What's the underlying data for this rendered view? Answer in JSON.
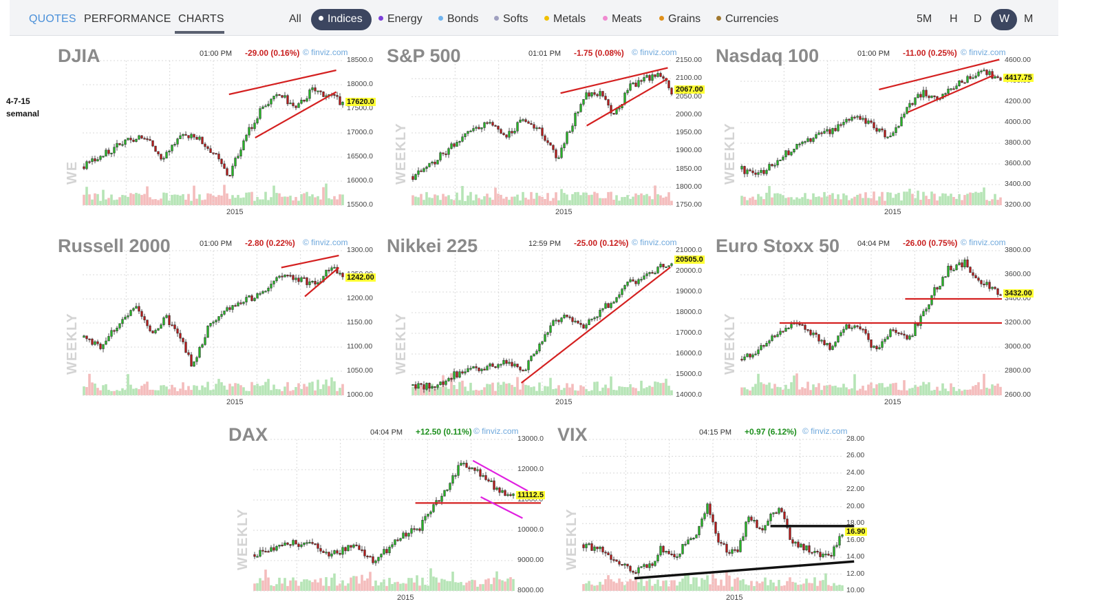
{
  "nav": {
    "tabs": [
      {
        "label": "QUOTES"
      },
      {
        "label": "PERFORMANCE"
      },
      {
        "label": "CHARTS"
      }
    ],
    "categories": [
      {
        "label": "All",
        "dot": ""
      },
      {
        "label": "Indices",
        "dot": "#ffffff"
      },
      {
        "label": "Energy",
        "dot": "#7b3fd8"
      },
      {
        "label": "Bonds",
        "dot": "#6fb3ee"
      },
      {
        "label": "Softs",
        "dot": "#a0a0c0"
      },
      {
        "label": "Metals",
        "dot": "#f0c000"
      },
      {
        "label": "Meats",
        "dot": "#f08ad0"
      },
      {
        "label": "Grains",
        "dot": "#e0901a"
      },
      {
        "label": "Currencies",
        "dot": "#a07830"
      }
    ],
    "timeframes": [
      {
        "label": "5M"
      },
      {
        "label": "H"
      },
      {
        "label": "D"
      },
      {
        "label": "W"
      },
      {
        "label": "M"
      }
    ]
  },
  "note": {
    "line1": "4-7-15",
    "line2": "semanal"
  },
  "colors": {
    "up": "#27b327",
    "down": "#b31b1b",
    "trend_red": "#d42020",
    "trend_magenta": "#e020e0",
    "trend_black": "#111111",
    "price_tag": "#ffff33"
  },
  "panels": [
    {
      "title": "DJIA",
      "time": "01:00 PM",
      "change": "-29.00 (0.16%)",
      "change_dir": "neg",
      "source": "© finviz.com",
      "side_label": "WE",
      "price": "17620.0",
      "x_label": "2015",
      "y_ticks": [
        "18500.0",
        "18000.0",
        "17500.0",
        "17000.0",
        "16500.0",
        "16000.0",
        "15500.0"
      ]
    },
    {
      "title": "S&P 500",
      "time": "01:01 PM",
      "change": "-1.75 (0.08%)",
      "change_dir": "neg",
      "source": "© finviz.com",
      "side_label": "WEEKLY",
      "price": "2067.00",
      "x_label": "2015",
      "y_ticks": [
        "2150.00",
        "2100.00",
        "2050.00",
        "2000.00",
        "1950.00",
        "1900.00",
        "1850.00",
        "1800.00",
        "1750.00"
      ]
    },
    {
      "title": "Nasdaq 100",
      "time": "01:00 PM",
      "change": "-11.00 (0.25%)",
      "change_dir": "neg",
      "source": "© finviz.com",
      "side_label": "WEEKLY",
      "price": "4417.75",
      "x_label": "2015",
      "y_ticks": [
        "4600.00",
        "4400.00",
        "4200.00",
        "4000.00",
        "3800.00",
        "3600.00",
        "3400.00",
        "3200.00"
      ]
    },
    {
      "title": "Russell 2000",
      "time": "01:00 PM",
      "change": "-2.80 (0.22%)",
      "change_dir": "neg",
      "source": "© finviz.com",
      "side_label": "WEEKLY",
      "price": "1242.00",
      "x_label": "2015",
      "y_ticks": [
        "1300.00",
        "1250.00",
        "1200.00",
        "1150.00",
        "1100.00",
        "1050.00",
        "1000.00"
      ]
    },
    {
      "title": "Nikkei 225",
      "time": "12:59 PM",
      "change": "-25.00 (0.12%)",
      "change_dir": "neg",
      "source": "© finviz.com",
      "side_label": "WEEKLY",
      "price": "20505.0",
      "x_label": "2015",
      "y_ticks": [
        "21000.0",
        "20000.0",
        "19000.0",
        "18000.0",
        "17000.0",
        "16000.0",
        "15000.0",
        "14000.0"
      ]
    },
    {
      "title": "Euro Stoxx 50",
      "time": "04:04 PM",
      "change": "-26.00 (0.75%)",
      "change_dir": "neg",
      "source": "© finviz.com",
      "side_label": "WEEKLY",
      "price": "3432.00",
      "x_label": "2015",
      "y_ticks": [
        "3800.00",
        "3600.00",
        "3400.00",
        "3200.00",
        "3000.00",
        "2800.00",
        "2600.00"
      ]
    },
    {
      "title": "DAX",
      "time": "04:04 PM",
      "change": "+12.50 (0.11%)",
      "change_dir": "pos",
      "source": "© finviz.com",
      "side_label": "WEEKLY",
      "price": "11112.5",
      "x_label": "2015",
      "y_ticks": [
        "13000.0",
        "12000.0",
        "11000.0",
        "10000.0",
        "9000.00",
        "8000.00"
      ]
    },
    {
      "title": "VIX",
      "time": "04:15 PM",
      "change": "+0.97 (6.12%)",
      "change_dir": "pos",
      "source": "© finviz.com",
      "side_label": "WEEKLY",
      "price": "16.90",
      "x_label": "2015",
      "y_ticks": [
        "28.00",
        "26.00",
        "24.00",
        "22.00",
        "20.00",
        "18.00",
        "16.00",
        "14.00",
        "12.00",
        "10.00"
      ]
    }
  ],
  "chart_data": [
    {
      "type": "candlestick",
      "title": "DJIA",
      "y_range": [
        15500,
        18500
      ],
      "last": 17620,
      "path": [
        [
          0,
          16300
        ],
        [
          0.06,
          16500
        ],
        [
          0.12,
          16700
        ],
        [
          0.2,
          16900
        ],
        [
          0.26,
          16800
        ],
        [
          0.3,
          16500
        ],
        [
          0.36,
          16850
        ],
        [
          0.42,
          17000
        ],
        [
          0.5,
          16600
        ],
        [
          0.56,
          16100
        ],
        [
          0.62,
          16900
        ],
        [
          0.7,
          17600
        ],
        [
          0.76,
          17800
        ],
        [
          0.82,
          17500
        ],
        [
          0.88,
          17900
        ],
        [
          0.94,
          17800
        ],
        [
          1,
          17620
        ]
      ],
      "trendlines": [
        {
          "from": [
            0.56,
            17800
          ],
          "to": [
            0.97,
            18300
          ],
          "color": "trend_red"
        },
        {
          "from": [
            0.66,
            16900
          ],
          "to": [
            0.97,
            17850
          ],
          "color": "trend_red"
        }
      ]
    },
    {
      "type": "candlestick",
      "title": "S&P 500",
      "y_range": [
        1750,
        2150
      ],
      "last": 2067,
      "path": [
        [
          0,
          1830
        ],
        [
          0.08,
          1870
        ],
        [
          0.16,
          1920
        ],
        [
          0.24,
          1960
        ],
        [
          0.3,
          1980
        ],
        [
          0.36,
          1940
        ],
        [
          0.42,
          1980
        ],
        [
          0.5,
          1950
        ],
        [
          0.56,
          1880
        ],
        [
          0.6,
          1950
        ],
        [
          0.66,
          2050
        ],
        [
          0.72,
          2060
        ],
        [
          0.78,
          2000
        ],
        [
          0.84,
          2080
        ],
        [
          0.9,
          2100
        ],
        [
          0.96,
          2110
        ],
        [
          1,
          2067
        ]
      ],
      "trendlines": [
        {
          "from": [
            0.57,
            2060
          ],
          "to": [
            0.98,
            2130
          ],
          "color": "trend_red"
        },
        {
          "from": [
            0.67,
            1970
          ],
          "to": [
            0.98,
            2100
          ],
          "color": "trend_red"
        }
      ]
    },
    {
      "type": "candlestick",
      "title": "Nasdaq 100",
      "y_range": [
        3200,
        4600
      ],
      "last": 4417.75,
      "path": [
        [
          0,
          3550
        ],
        [
          0.06,
          3480
        ],
        [
          0.12,
          3600
        ],
        [
          0.2,
          3750
        ],
        [
          0.28,
          3850
        ],
        [
          0.36,
          3950
        ],
        [
          0.44,
          4050
        ],
        [
          0.52,
          3950
        ],
        [
          0.58,
          3850
        ],
        [
          0.64,
          4150
        ],
        [
          0.7,
          4300
        ],
        [
          0.76,
          4200
        ],
        [
          0.82,
          4350
        ],
        [
          0.88,
          4450
        ],
        [
          0.94,
          4500
        ],
        [
          1,
          4417.75
        ]
      ],
      "trendlines": [
        {
          "from": [
            0.53,
            4320
          ],
          "to": [
            0.99,
            4610
          ],
          "color": "trend_red"
        },
        {
          "from": [
            0.64,
            4100
          ],
          "to": [
            0.97,
            4460
          ],
          "color": "trend_red"
        }
      ]
    },
    {
      "type": "candlestick",
      "title": "Russell 2000",
      "y_range": [
        1000,
        1300
      ],
      "last": 1242,
      "path": [
        [
          0,
          1120
        ],
        [
          0.06,
          1100
        ],
        [
          0.12,
          1140
        ],
        [
          0.2,
          1180
        ],
        [
          0.26,
          1130
        ],
        [
          0.32,
          1160
        ],
        [
          0.38,
          1110
        ],
        [
          0.42,
          1060
        ],
        [
          0.48,
          1140
        ],
        [
          0.56,
          1180
        ],
        [
          0.64,
          1200
        ],
        [
          0.72,
          1230
        ],
        [
          0.78,
          1250
        ],
        [
          0.84,
          1240
        ],
        [
          0.9,
          1230
        ],
        [
          0.96,
          1270
        ],
        [
          1,
          1242
        ]
      ],
      "trendlines": [
        {
          "from": [
            0.76,
            1265
          ],
          "to": [
            0.98,
            1290
          ],
          "color": "trend_red"
        },
        {
          "from": [
            0.85,
            1205
          ],
          "to": [
            0.98,
            1265
          ],
          "color": "trend_red"
        }
      ]
    },
    {
      "type": "candlestick",
      "title": "Nikkei 225",
      "y_range": [
        14000,
        21000
      ],
      "last": 20505,
      "path": [
        [
          0,
          14500
        ],
        [
          0.08,
          14400
        ],
        [
          0.16,
          15000
        ],
        [
          0.24,
          15300
        ],
        [
          0.32,
          15500
        ],
        [
          0.38,
          15600
        ],
        [
          0.42,
          15100
        ],
        [
          0.48,
          16200
        ],
        [
          0.54,
          17500
        ],
        [
          0.6,
          17800
        ],
        [
          0.66,
          17400
        ],
        [
          0.72,
          18000
        ],
        [
          0.78,
          18700
        ],
        [
          0.84,
          19500
        ],
        [
          0.9,
          19700
        ],
        [
          0.96,
          20300
        ],
        [
          1,
          20505
        ]
      ],
      "trendlines": [
        {
          "from": [
            0.42,
            14600
          ],
          "to": [
            0.99,
            20200
          ],
          "color": "trend_red"
        }
      ]
    },
    {
      "type": "candlestick",
      "title": "Euro Stoxx 50",
      "y_range": [
        2600,
        3800
      ],
      "last": 3432,
      "path": [
        [
          0,
          2900
        ],
        [
          0.08,
          3000
        ],
        [
          0.16,
          3150
        ],
        [
          0.22,
          3180
        ],
        [
          0.28,
          3100
        ],
        [
          0.34,
          3000
        ],
        [
          0.4,
          3180
        ],
        [
          0.46,
          3150
        ],
        [
          0.52,
          2950
        ],
        [
          0.58,
          3150
        ],
        [
          0.64,
          3050
        ],
        [
          0.68,
          3200
        ],
        [
          0.74,
          3450
        ],
        [
          0.8,
          3650
        ],
        [
          0.86,
          3700
        ],
        [
          0.92,
          3550
        ],
        [
          0.96,
          3500
        ],
        [
          1,
          3432
        ]
      ],
      "trendlines": [
        {
          "from": [
            0.15,
            3200
          ],
          "to": [
            1.0,
            3200
          ],
          "color": "trend_red"
        },
        {
          "from": [
            0.63,
            3400
          ],
          "to": [
            1.0,
            3400
          ],
          "color": "trend_red"
        }
      ]
    },
    {
      "type": "candlestick",
      "title": "DAX",
      "y_range": [
        8000,
        13000
      ],
      "last": 11112.5,
      "path": [
        [
          0,
          9200
        ],
        [
          0.1,
          9500
        ],
        [
          0.2,
          9600
        ],
        [
          0.3,
          9200
        ],
        [
          0.38,
          9500
        ],
        [
          0.46,
          9000
        ],
        [
          0.52,
          9400
        ],
        [
          0.58,
          9900
        ],
        [
          0.64,
          10100
        ],
        [
          0.68,
          10600
        ],
        [
          0.74,
          11400
        ],
        [
          0.8,
          12200
        ],
        [
          0.86,
          11900
        ],
        [
          0.92,
          11500
        ],
        [
          0.97,
          11200
        ],
        [
          1,
          11112.5
        ]
      ],
      "trendlines": [
        {
          "from": [
            0.62,
            10900
          ],
          "to": [
            1.1,
            10900
          ],
          "color": "trend_red"
        },
        {
          "from": [
            0.84,
            12300
          ],
          "to": [
            1.05,
            11300
          ],
          "color": "trend_magenta"
        },
        {
          "from": [
            0.87,
            11100
          ],
          "to": [
            1.03,
            10400
          ],
          "color": "trend_magenta"
        }
      ]
    },
    {
      "type": "candlestick",
      "title": "VIX",
      "y_range": [
        10,
        28
      ],
      "last": 16.9,
      "path": [
        [
          0,
          15.5
        ],
        [
          0.06,
          15
        ],
        [
          0.12,
          13.5
        ],
        [
          0.2,
          12.5
        ],
        [
          0.26,
          13
        ],
        [
          0.3,
          15
        ],
        [
          0.36,
          14
        ],
        [
          0.4,
          16
        ],
        [
          0.44,
          17
        ],
        [
          0.48,
          20
        ],
        [
          0.52,
          16
        ],
        [
          0.56,
          14.5
        ],
        [
          0.6,
          15
        ],
        [
          0.64,
          19
        ],
        [
          0.68,
          17
        ],
        [
          0.72,
          19
        ],
        [
          0.76,
          20
        ],
        [
          0.8,
          16
        ],
        [
          0.86,
          15
        ],
        [
          0.92,
          14
        ],
        [
          0.96,
          14.5
        ],
        [
          1,
          16.9
        ]
      ],
      "trendlines": [
        {
          "from": [
            0.2,
            11.5
          ],
          "to": [
            1.04,
            13.5
          ],
          "color": "trend_black"
        },
        {
          "from": [
            0.72,
            17.7
          ],
          "to": [
            1.04,
            17.7
          ],
          "color": "trend_black"
        }
      ]
    }
  ]
}
